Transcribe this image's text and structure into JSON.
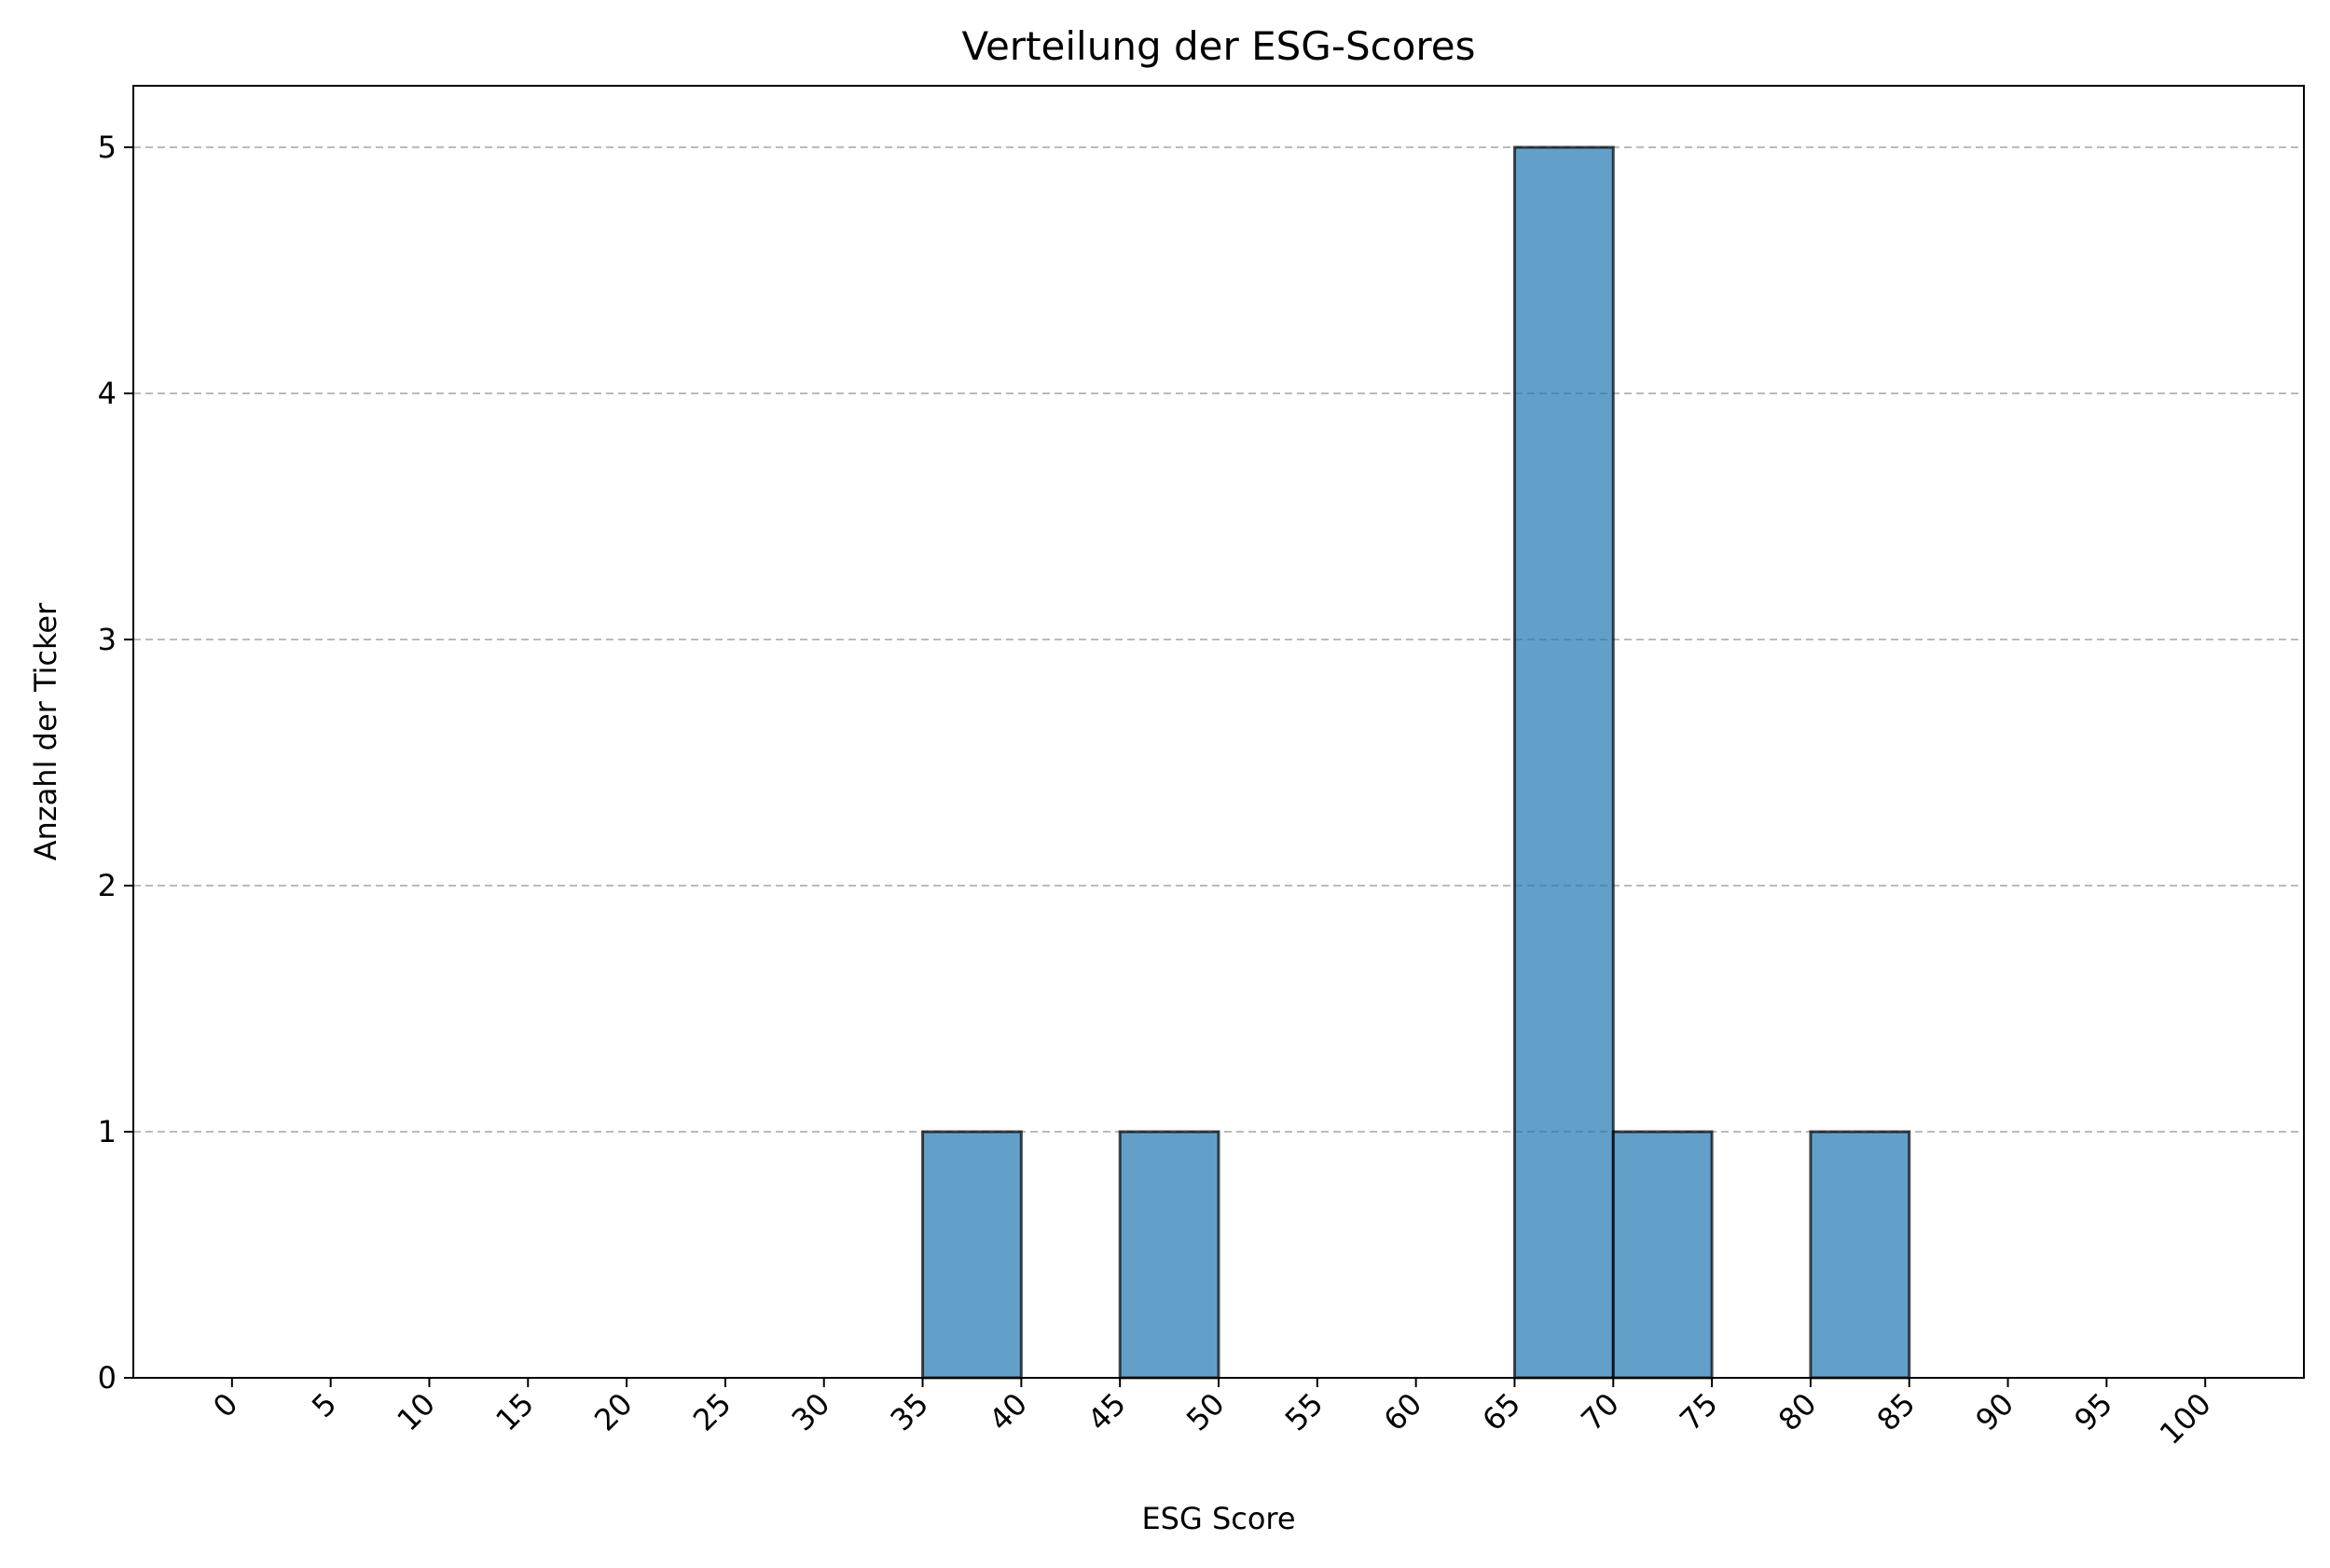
{
  "chart_data": {
    "type": "histogram",
    "title": "Verteilung der ESG-Scores",
    "x_label": "ESG Score",
    "y_label": "Anzahl der Ticker",
    "bins": [
      0,
      5,
      10,
      15,
      20,
      25,
      30,
      35,
      40,
      45,
      50,
      55,
      60,
      65,
      70,
      75,
      80,
      85,
      90,
      95,
      100
    ],
    "values": [
      0,
      0,
      0,
      0,
      0,
      0,
      0,
      1,
      0,
      1,
      0,
      0,
      0,
      5,
      1,
      0,
      1,
      0,
      0,
      0
    ],
    "color": "#1f77b4",
    "edgecolor": "#000000",
    "xlim": [
      -5,
      105
    ],
    "ylim": [
      0,
      5.25
    ],
    "xticks": [
      0,
      5,
      10,
      15,
      20,
      25,
      30,
      35,
      40,
      45,
      50,
      55,
      60,
      65,
      70,
      75,
      80,
      85,
      90,
      95,
      100
    ],
    "yticks": [
      0,
      1,
      2,
      3,
      4,
      5
    ],
    "grid": true
  }
}
